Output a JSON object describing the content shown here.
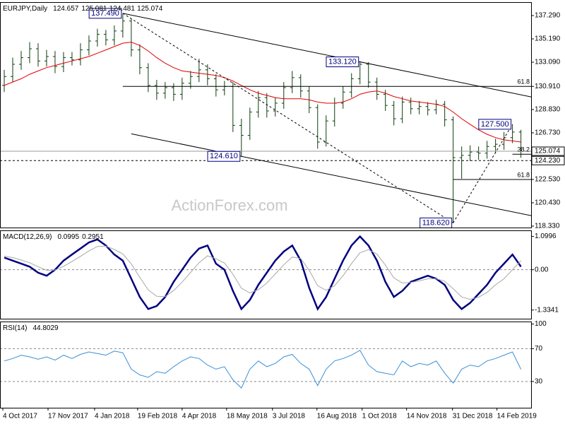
{
  "chart_data": [
    {
      "type": "candlestick",
      "title": "EURJPY,Daily",
      "header_values": [
        124.657,
        125.081,
        124.481,
        125.074
      ],
      "watermark": "ActionForex.com",
      "color": "#0b3d0b",
      "xlim": [
        -0.5,
        62.2
      ],
      "xticks": [
        {
          "value": -0.17,
          "label": "4 Oct 2017"
        },
        {
          "value": 5.17,
          "label": "17 Nov 2017"
        },
        {
          "value": 10.67,
          "label": "4 Jan 2018"
        },
        {
          "value": 15.75,
          "label": "19 Feb 2018"
        },
        {
          "value": 21,
          "label": "4 Apr 2018"
        },
        {
          "value": 26.25,
          "label": "18 May 2018"
        },
        {
          "value": 31.67,
          "label": "3 Jul 2018"
        },
        {
          "value": 36.92,
          "label": "16 Aug 2018"
        },
        {
          "value": 42.25,
          "label": "1 Oct 2018"
        },
        {
          "value": 47.5,
          "label": "14 Nov 2018"
        },
        {
          "value": 52.92,
          "label": "31 Dec 2018"
        },
        {
          "value": 58.17,
          "label": "14 Feb 2019"
        }
      ],
      "ylim": [
        118.2,
        138.5
      ],
      "yticks": [
        {
          "value": 137.29,
          "label": "137.290"
        },
        {
          "value": 135.19,
          "label": "135.190"
        },
        {
          "value": 133.09,
          "label": "133.090"
        },
        {
          "value": 130.91,
          "label": "130.910"
        },
        {
          "value": 128.83,
          "label": "128.830"
        },
        {
          "value": 126.73,
          "label": "126.730"
        },
        {
          "value": 122.53,
          "label": "122.530"
        },
        {
          "value": 120.43,
          "label": "120.430"
        },
        {
          "value": 118.33,
          "label": "118.330"
        }
      ],
      "open": [
        131.0,
        131.8,
        132.9,
        133.5,
        134.3,
        133.2,
        133.6,
        132.7,
        133.5,
        133.3,
        134.2,
        135.0,
        135.6,
        135.1,
        135.9,
        136.8,
        134.2,
        132.6,
        131.0,
        130.3,
        130.8,
        130.2,
        131.2,
        131.8,
        132.4,
        131.6,
        130.6,
        130.9,
        127.4,
        126.5,
        128.6,
        129.9,
        128.7,
        129.4,
        130.8,
        131.7,
        130.5,
        129.0,
        125.9,
        127.8,
        129.4,
        130.4,
        131.6,
        132.9,
        131.3,
        130.2,
        129.2,
        128.0,
        129.5,
        128.9,
        129.1,
        128.8,
        129.3,
        127.9,
        124.5,
        124.7,
        125.0,
        124.9,
        125.5,
        125.7,
        126.3,
        126.8
      ],
      "high": [
        132.4,
        133.5,
        134.1,
        134.9,
        134.8,
        134.2,
        134.1,
        134.0,
        134.0,
        134.8,
        135.5,
        136.1,
        136.0,
        136.4,
        137.49,
        137.0,
        134.7,
        133.0,
        131.5,
        131.3,
        131.2,
        131.7,
        132.3,
        133.4,
        132.9,
        132.0,
        131.4,
        131.3,
        128.0,
        129.0,
        130.5,
        130.3,
        129.9,
        131.3,
        132.3,
        132.0,
        130.9,
        129.3,
        128.3,
        129.9,
        130.9,
        132.1,
        133.12,
        133.1,
        131.7,
        130.6,
        129.6,
        130.0,
        129.9,
        129.6,
        129.5,
        129.7,
        129.6,
        128.2,
        125.5,
        125.6,
        125.5,
        126.0,
        126.2,
        126.8,
        127.5,
        127.0
      ],
      "low": [
        130.4,
        131.3,
        132.4,
        133.0,
        132.7,
        132.7,
        132.1,
        132.2,
        132.8,
        132.8,
        133.7,
        134.5,
        134.6,
        134.6,
        135.3,
        133.6,
        132.0,
        130.4,
        129.7,
        129.8,
        129.6,
        129.7,
        130.7,
        131.3,
        131.0,
        130.0,
        130.1,
        126.8,
        124.61,
        126.1,
        128.1,
        128.1,
        128.2,
        128.9,
        130.3,
        129.9,
        128.5,
        125.3,
        125.5,
        127.3,
        128.9,
        129.9,
        131.1,
        130.8,
        129.7,
        128.7,
        127.4,
        127.6,
        128.4,
        128.4,
        128.3,
        128.4,
        127.3,
        118.62,
        122.6,
        124.2,
        124.3,
        124.4,
        124.9,
        125.2,
        125.8,
        124.481
      ],
      "close": [
        131.8,
        132.9,
        133.5,
        134.3,
        133.2,
        133.6,
        132.7,
        133.5,
        133.3,
        134.2,
        135.0,
        135.6,
        135.1,
        135.9,
        136.8,
        134.2,
        132.6,
        131.0,
        130.3,
        130.8,
        130.2,
        131.2,
        131.8,
        132.4,
        131.6,
        130.6,
        130.9,
        127.4,
        126.5,
        128.6,
        129.9,
        128.7,
        129.4,
        130.8,
        131.7,
        130.5,
        129.0,
        125.9,
        127.8,
        129.4,
        130.4,
        131.6,
        132.9,
        131.3,
        130.2,
        129.2,
        128.0,
        129.5,
        128.9,
        129.1,
        128.8,
        129.3,
        127.9,
        124.5,
        124.7,
        125.0,
        124.9,
        125.5,
        125.7,
        126.3,
        126.8,
        125.074
      ],
      "ma": {
        "color": "#e00000",
        "values": [
          131.0,
          131.3,
          131.6,
          132.0,
          132.3,
          132.6,
          132.8,
          133.0,
          133.2,
          133.4,
          133.6,
          133.9,
          134.2,
          134.5,
          134.8,
          134.9,
          134.6,
          134.1,
          133.5,
          133.0,
          132.6,
          132.3,
          132.2,
          132.1,
          132.0,
          131.9,
          131.7,
          131.4,
          131.0,
          130.6,
          130.3,
          130.1,
          129.9,
          129.8,
          129.8,
          129.8,
          129.7,
          129.5,
          129.4,
          129.4,
          129.5,
          129.8,
          130.2,
          130.4,
          130.5,
          130.3,
          130.0,
          129.8,
          129.6,
          129.5,
          129.4,
          129.3,
          129.1,
          128.6,
          128.0,
          127.5,
          127.0,
          126.6,
          126.3,
          126.1,
          126.0,
          125.9
        ]
      },
      "levels": [
        {
          "value": 137.49,
          "label": "137.490"
        },
        {
          "value": 133.12,
          "label": "133.120"
        },
        {
          "value": 124.61,
          "label": "124.610"
        },
        {
          "value": 118.62,
          "label": "118.620"
        },
        {
          "value": 127.5,
          "label": "127.500"
        }
      ],
      "fibs": [
        {
          "label": "61.8",
          "level": 130.91
        },
        {
          "label": "61.8",
          "level": 122.53
        },
        {
          "label": "38.2",
          "level": 124.8
        }
      ],
      "price_boxes": [
        {
          "value": 125.074,
          "label": "125.074"
        },
        {
          "value": 124.23,
          "label": "124.230"
        }
      ]
    },
    {
      "type": "line",
      "title": "MACD(12,26,9)",
      "header_values": [
        0.0995,
        0.2951
      ],
      "ylim": [
        -1.62,
        1.3
      ],
      "grid": true,
      "yticks": [
        1.0996,
        {
          "value": 0,
          "label": "0.00"
        },
        -1.3341
      ],
      "series": [
        {
          "color": "#000080",
          "values": [
            0.4,
            0.3,
            0.2,
            0.1,
            -0.1,
            -0.2,
            0.0,
            0.3,
            0.5,
            0.7,
            0.9,
            1.0,
            0.8,
            0.5,
            0.3,
            -0.3,
            -0.9,
            -1.3,
            -1.2,
            -0.9,
            -0.4,
            0.0,
            0.4,
            0.7,
            0.8,
            0.2,
            0.0,
            -0.7,
            -1.3,
            -1.0,
            -0.5,
            -0.1,
            0.3,
            0.6,
            0.8,
            0.3,
            -0.6,
            -1.3,
            -0.9,
            -0.3,
            0.3,
            0.8,
            1.1,
            0.8,
            0.3,
            -0.4,
            -0.9,
            -0.7,
            -0.4,
            -0.3,
            -0.2,
            -0.3,
            -0.5,
            -1.0,
            -1.3,
            -1.1,
            -0.8,
            -0.5,
            -0.1,
            0.2,
            0.5,
            0.0995
          ]
        },
        {
          "color": "#a8a8a8",
          "values": [
            0.45,
            0.4,
            0.32,
            0.23,
            0.1,
            -0.02,
            -0.01,
            0.11,
            0.27,
            0.44,
            0.62,
            0.77,
            0.78,
            0.67,
            0.52,
            0.19,
            -0.25,
            -0.67,
            -0.88,
            -0.89,
            -0.69,
            -0.41,
            -0.09,
            0.23,
            0.46,
            0.36,
            0.22,
            -0.15,
            -0.61,
            -0.77,
            -0.66,
            -0.44,
            -0.14,
            0.16,
            0.42,
            0.37,
            -0.02,
            -0.53,
            -0.68,
            -0.53,
            -0.2,
            0.2,
            0.56,
            0.66,
            0.52,
            0.15,
            -0.27,
            -0.44,
            -0.42,
            -0.37,
            -0.3,
            -0.3,
            -0.38,
            -0.63,
            -0.9,
            -0.98,
            -0.91,
            -0.75,
            -0.5,
            -0.3,
            0.0,
            0.2951
          ]
        }
      ]
    },
    {
      "type": "line",
      "title": "RSI(14)",
      "header_values": [
        44.8029
      ],
      "ylim": [
        -2,
        103
      ],
      "grid": true,
      "yticks": [
        100,
        70,
        30
      ],
      "series": [
        {
          "color": "#3a8fd6",
          "values": [
            55,
            58,
            62,
            60,
            57,
            60,
            56,
            62,
            58,
            63,
            66,
            64,
            62,
            67,
            65,
            45,
            38,
            35,
            42,
            40,
            48,
            55,
            60,
            58,
            50,
            45,
            48,
            32,
            22,
            45,
            55,
            48,
            52,
            60,
            63,
            52,
            45,
            25,
            45,
            55,
            58,
            62,
            68,
            50,
            42,
            40,
            38,
            55,
            48,
            52,
            50,
            55,
            40,
            28,
            45,
            50,
            48,
            55,
            58,
            62,
            66,
            44.8029
          ]
        }
      ]
    }
  ]
}
